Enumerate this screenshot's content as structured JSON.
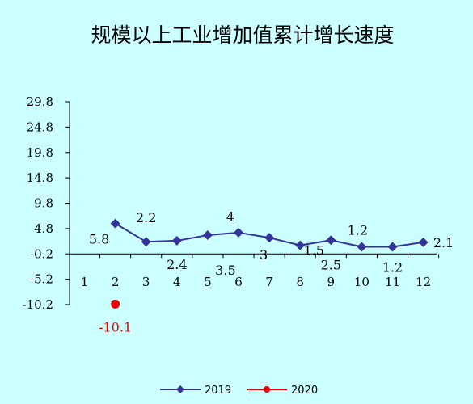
{
  "chart_data": {
    "type": "line",
    "title": "规模以上工业增加值累计增长速度",
    "xlabel": "",
    "ylabel": "",
    "categories": [
      "1",
      "2",
      "3",
      "4",
      "5",
      "6",
      "7",
      "8",
      "9",
      "10",
      "11",
      "12"
    ],
    "y_ticks": [
      "29.8",
      "24.8",
      "19.8",
      "14.8",
      "9.8",
      "4.8",
      "-0.2",
      "-5.2",
      "-10.2"
    ],
    "ylim": [
      -10.2,
      29.8
    ],
    "grid": false,
    "legend_position": "bottom",
    "series": [
      {
        "name": "2019",
        "color": "#333399",
        "marker": "diamond",
        "values": [
          null,
          5.8,
          2.2,
          2.4,
          3.5,
          4,
          3,
          1.5,
          2.5,
          1.2,
          1.2,
          2.1
        ],
        "labels": [
          "",
          "5.8",
          "2.2",
          "2.4",
          "3.5",
          "4",
          "3",
          "1.5",
          "2.5",
          "1.2",
          "1.2",
          "2.1"
        ]
      },
      {
        "name": "2020",
        "color": "#ee0000",
        "marker": "circle",
        "values": [
          null,
          -10.1,
          null,
          null,
          null,
          null,
          null,
          null,
          null,
          null,
          null,
          null
        ],
        "labels": [
          "",
          "-10.1",
          "",
          "",
          "",
          "",
          "",
          "",
          "",
          "",
          "",
          ""
        ]
      }
    ]
  }
}
